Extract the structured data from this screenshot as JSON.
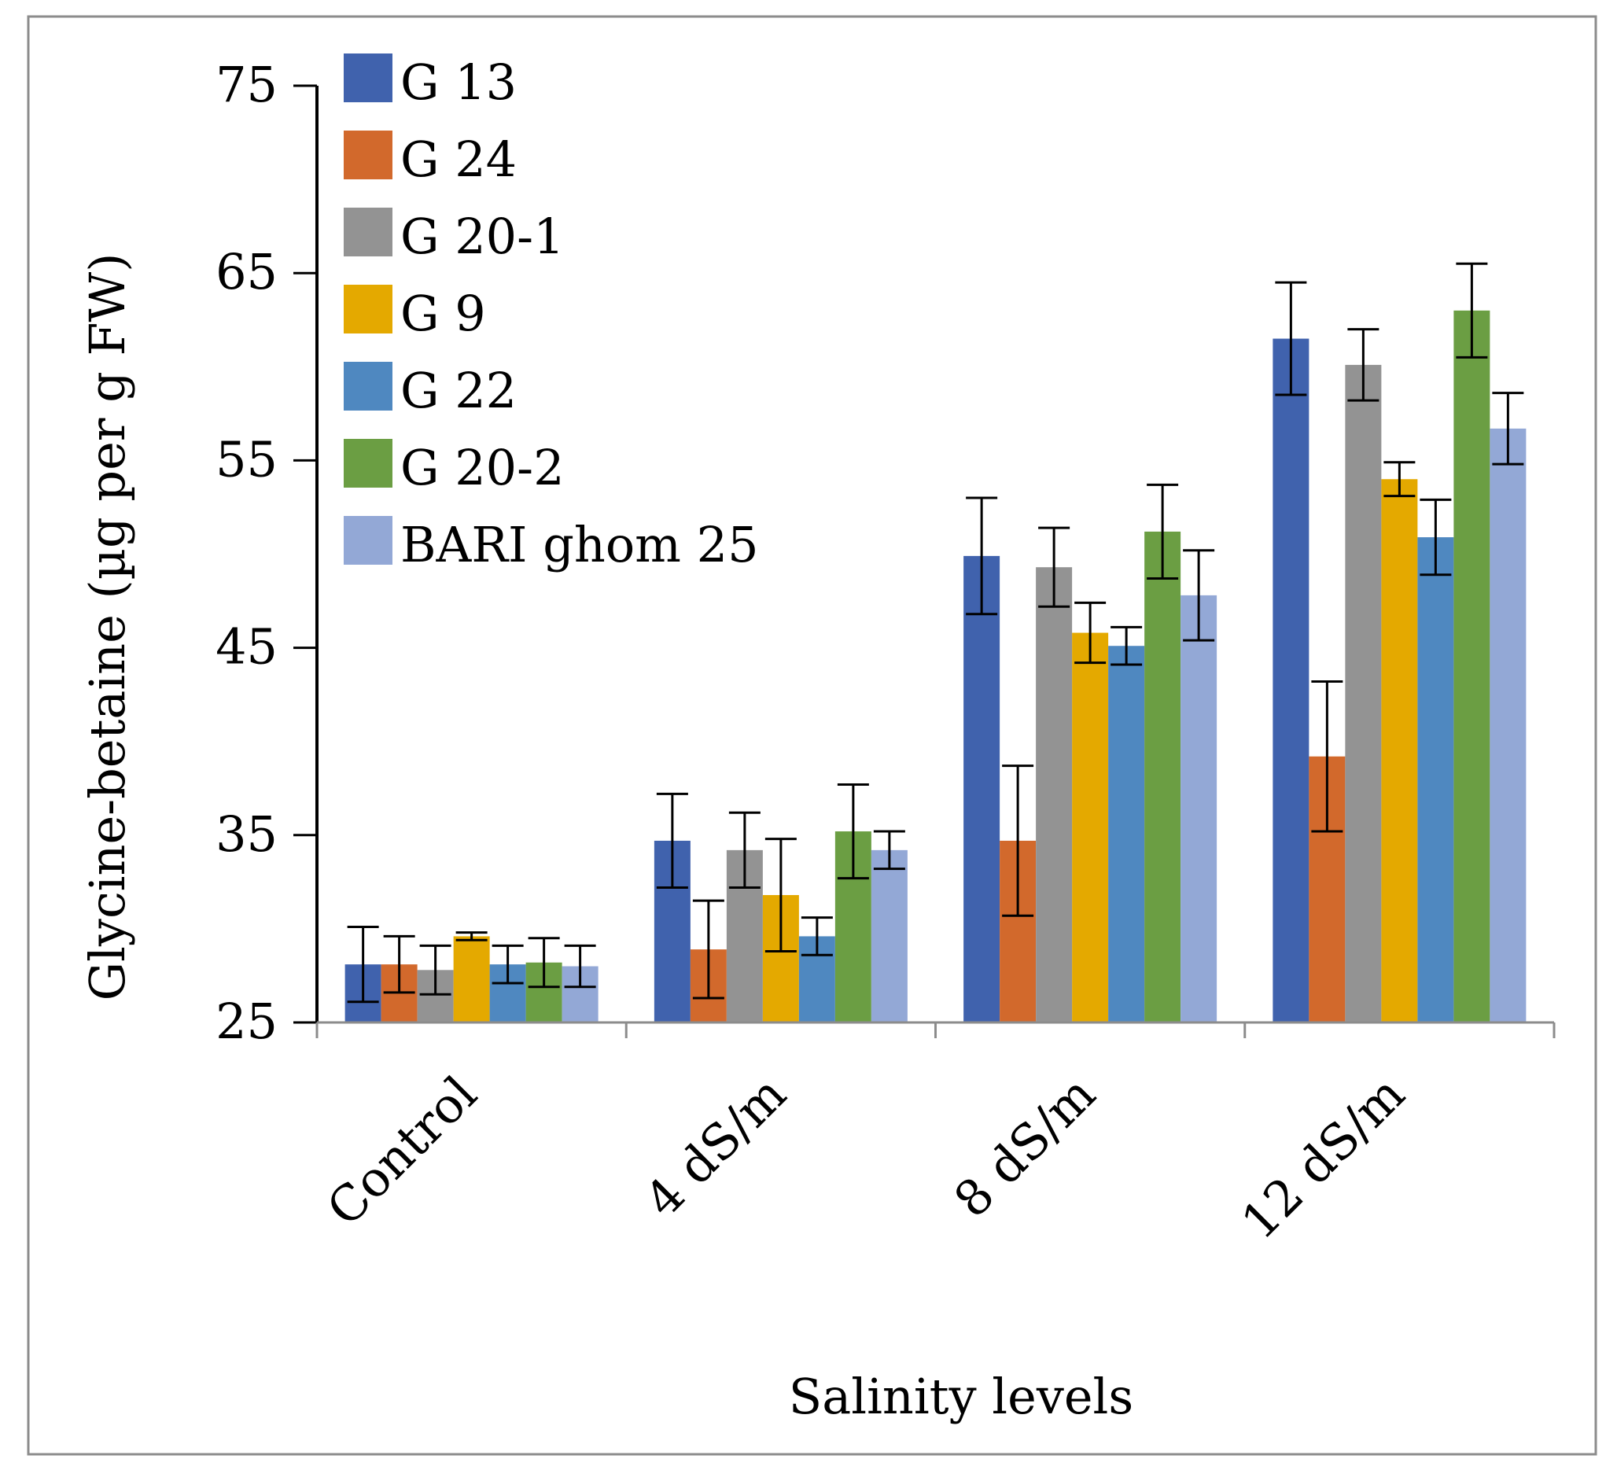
{
  "chart_data": {
    "type": "bar",
    "title": "",
    "xlabel": "Salinity levels",
    "ylabel": "Glycine-betaine (µg per g FW)",
    "ylim": [
      25,
      75
    ],
    "yticks": [
      "25",
      "35",
      "45",
      "55",
      "65",
      "75"
    ],
    "grid": false,
    "legend_position": "top-left",
    "categories": [
      "Control",
      "4 dS/m",
      "8 dS/m",
      "12 dS/m"
    ],
    "series": [
      {
        "name": "G 13",
        "color": "#4062AD",
        "values": [
          28.1,
          34.7,
          49.9,
          61.5
        ],
        "errors": [
          2.0,
          2.5,
          3.1,
          3.0
        ]
      },
      {
        "name": "G 24",
        "color": "#D2692C",
        "values": [
          28.1,
          28.9,
          34.7,
          39.2
        ],
        "errors": [
          1.5,
          2.6,
          4.0,
          4.0
        ]
      },
      {
        "name": "G 20-1",
        "color": "#939393",
        "values": [
          27.8,
          34.2,
          49.3,
          60.1
        ],
        "errors": [
          1.3,
          2.0,
          2.1,
          1.9
        ]
      },
      {
        "name": "G 9",
        "color": "#E4A900",
        "values": [
          29.6,
          31.8,
          45.8,
          54.0
        ],
        "errors": [
          0.2,
          3.0,
          1.6,
          0.9
        ]
      },
      {
        "name": "G 22",
        "color": "#4F88C0",
        "values": [
          28.1,
          29.6,
          45.1,
          50.9
        ],
        "errors": [
          1.0,
          1.0,
          1.0,
          2.0
        ]
      },
      {
        "name": "G 20-2",
        "color": "#6B9E43",
        "values": [
          28.2,
          35.2,
          51.2,
          63.0
        ],
        "errors": [
          1.3,
          2.5,
          2.5,
          2.5
        ]
      },
      {
        "name": "BARI ghom 25",
        "color": "#93A8D6",
        "values": [
          28.0,
          34.2,
          47.8,
          56.7
        ],
        "errors": [
          1.1,
          1.0,
          2.4,
          1.9
        ]
      }
    ]
  }
}
